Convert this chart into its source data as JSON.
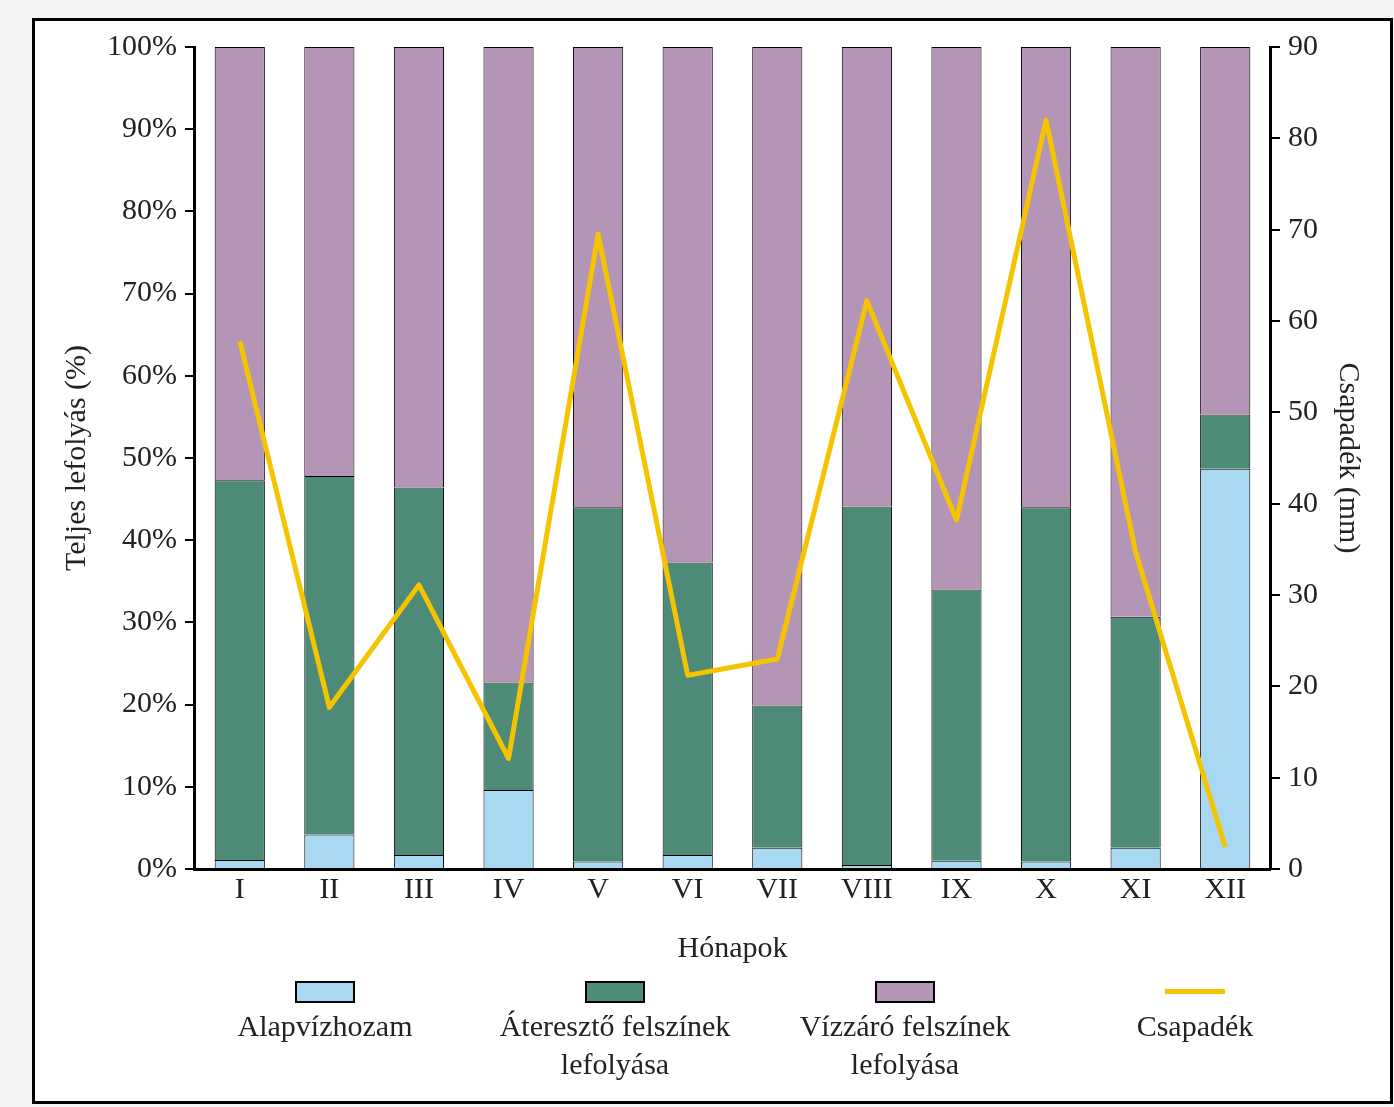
{
  "chart_data": {
    "type": "bar",
    "stacked": true,
    "xlabel": "Hónapok",
    "ylabel": "Teljes lefolyás (%)",
    "y2label": "Csapadék (mm)",
    "categories": [
      "I",
      "II",
      "III",
      "IV",
      "V",
      "VI",
      "VII",
      "VIII",
      "IX",
      "X",
      "XI",
      "XII"
    ],
    "series": [
      {
        "name": "Alapvízhozam",
        "color": "#a9d9f2",
        "values": [
          1.1,
          4.2,
          1.7,
          9.6,
          0.9,
          1.7,
          2.6,
          0.5,
          1.0,
          0.9,
          2.6,
          48.7
        ]
      },
      {
        "name": "Áteresztő felszínek lefolyása",
        "color": "#4d8a78",
        "values": [
          46.2,
          43.6,
          44.7,
          13.1,
          43.1,
          35.6,
          17.3,
          43.6,
          33.0,
          43.1,
          28.1,
          6.6
        ]
      },
      {
        "name": "Vízzáró felszínek lefolyása",
        "color": "#b595b5",
        "values": [
          52.7,
          52.2,
          53.6,
          77.3,
          56.0,
          62.7,
          80.1,
          55.9,
          66.0,
          56.0,
          69.3,
          44.7
        ]
      },
      {
        "name": "Csapadék",
        "type": "line",
        "axis": "y2",
        "color": "#f5c400",
        "values": [
          57.8,
          17.7,
          31.1,
          12.1,
          69.5,
          21.2,
          23.0,
          62.2,
          38.2,
          82.0,
          34.7,
          2.4
        ]
      }
    ],
    "ylim": [
      0,
      100
    ],
    "yticks": [
      {
        "value": 0,
        "label": "0%"
      },
      {
        "value": 10,
        "label": "10%"
      },
      {
        "value": 20,
        "label": "20%"
      },
      {
        "value": 30,
        "label": "30%"
      },
      {
        "value": 40,
        "label": "40%"
      },
      {
        "value": 50,
        "label": "50%"
      },
      {
        "value": 60,
        "label": "60%"
      },
      {
        "value": 70,
        "label": "70%"
      },
      {
        "value": 80,
        "label": "80%"
      },
      {
        "value": 90,
        "label": "90%"
      },
      {
        "value": 100,
        "label": "100%"
      }
    ],
    "y2lim": [
      0,
      90
    ],
    "y2ticks": [
      0,
      10,
      20,
      30,
      40,
      50,
      60,
      70,
      80,
      90
    ],
    "grid": false,
    "legend": "bottom",
    "marker": "none",
    "line_style": "solid"
  }
}
